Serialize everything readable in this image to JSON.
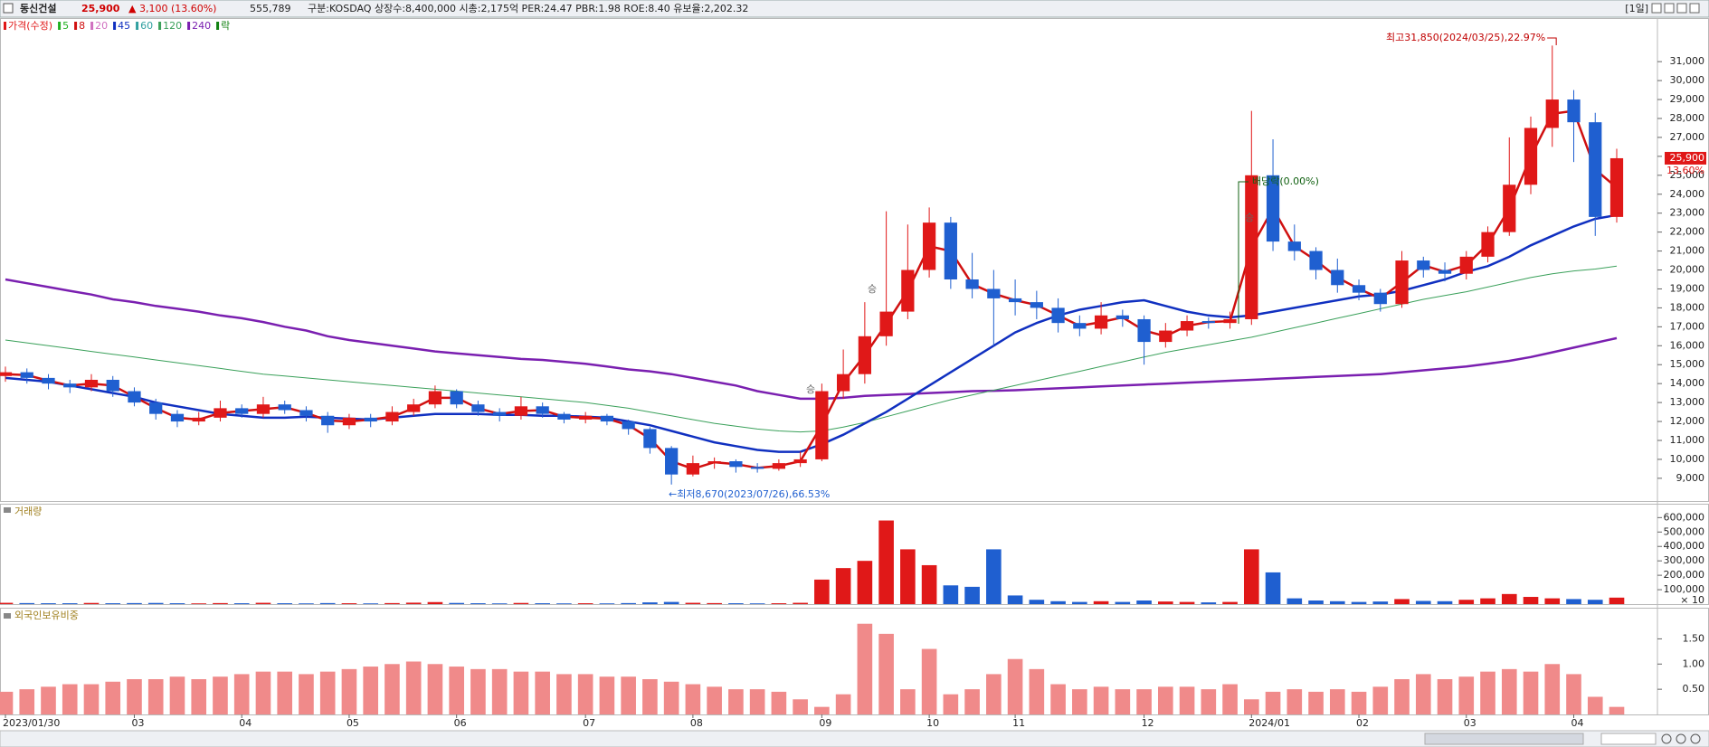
{
  "header": {
    "name": "동신건설",
    "price": "25,900",
    "change": "▲ 3,100 (13.60%)",
    "volume": "555,789",
    "info": "구분:KOSDAQ 상장수:8,400,000 시총:2,175억 PER:24.47 PBR:1.98 ROE:8.40 유보율:2,202.32",
    "period": "[1일]"
  },
  "chart_data": [
    {
      "type": "candlestick",
      "categories": [
        "2023/01/30",
        null,
        null,
        null,
        null,
        null,
        "03",
        null,
        null,
        null,
        null,
        "04",
        null,
        null,
        null,
        null,
        "05",
        null,
        null,
        null,
        null,
        "06",
        null,
        null,
        null,
        null,
        null,
        "07",
        null,
        null,
        null,
        null,
        "08",
        null,
        null,
        null,
        null,
        null,
        "09",
        null,
        null,
        null,
        null,
        "10",
        null,
        null,
        null,
        "11",
        null,
        null,
        null,
        null,
        null,
        "12",
        null,
        null,
        null,
        null,
        "2024/01",
        null,
        null,
        null,
        null,
        "02",
        null,
        null,
        null,
        null,
        "03",
        null,
        null,
        null,
        null,
        "04",
        null,
        null
      ],
      "open": [
        14400,
        14600,
        14300,
        14000,
        13800,
        14200,
        13600,
        13000,
        12400,
        12000,
        12200,
        12700,
        12400,
        12900,
        12600,
        12300,
        11800,
        12200,
        12000,
        12500,
        12900,
        13600,
        12900,
        12500,
        12300,
        12800,
        12400,
        12100,
        12300,
        12000,
        11600,
        10600,
        9200,
        9800,
        9900,
        9600,
        9500,
        9800,
        10000,
        13600,
        14500,
        16500,
        17800,
        20000,
        22500,
        19500,
        19000,
        18500,
        18300,
        18000,
        17200,
        16900,
        17600,
        17400,
        16200,
        16800,
        17300,
        17200,
        17400,
        25000,
        21500,
        21000,
        20000,
        19200,
        18800,
        18200,
        20500,
        20000,
        19800,
        20700,
        22000,
        24500,
        27500,
        29000,
        27800,
        22800
      ],
      "high": [
        14900,
        14800,
        14500,
        14200,
        14500,
        14400,
        13800,
        13200,
        12600,
        12500,
        13100,
        12900,
        13300,
        13100,
        12800,
        12500,
        12400,
        12400,
        12800,
        13200,
        13900,
        13700,
        13100,
        12700,
        13300,
        13000,
        12500,
        12500,
        12400,
        12100,
        11700,
        10700,
        10200,
        10100,
        10000,
        9800,
        10000,
        10400,
        14000,
        15800,
        18300,
        23100,
        22400,
        23300,
        22800,
        20900,
        20000,
        19500,
        18900,
        18500,
        17600,
        18300,
        17900,
        17600,
        17200,
        17600,
        17500,
        17800,
        28400,
        26900,
        22400,
        21200,
        20600,
        19500,
        19000,
        21000,
        20700,
        20400,
        21000,
        22300,
        27000,
        28100,
        31850,
        29500,
        28300,
        26400
      ],
      "low": [
        14100,
        14000,
        13700,
        13500,
        13600,
        13300,
        12800,
        12100,
        11700,
        11800,
        12000,
        12200,
        12200,
        12400,
        12000,
        11400,
        11600,
        11700,
        11800,
        12300,
        12700,
        12700,
        12300,
        12000,
        12100,
        12200,
        11900,
        11900,
        11800,
        11300,
        10300,
        8670,
        9100,
        9500,
        9300,
        9300,
        9400,
        9600,
        9900,
        13200,
        14000,
        16000,
        17400,
        19600,
        19000,
        18500,
        16000,
        17600,
        17400,
        16700,
        16500,
        16600,
        17000,
        15000,
        15900,
        16500,
        16900,
        16900,
        17100,
        21000,
        20500,
        19500,
        18800,
        18400,
        17800,
        18000,
        19600,
        19400,
        19500,
        20400,
        21800,
        24000,
        26500,
        25700,
        21800,
        22500
      ],
      "close": [
        14600,
        14300,
        14000,
        13800,
        14200,
        13600,
        13000,
        12400,
        12000,
        12200,
        12700,
        12400,
        12900,
        12600,
        12300,
        11800,
        12200,
        12000,
        12500,
        12900,
        13600,
        12900,
        12500,
        12300,
        12800,
        12400,
        12100,
        12300,
        12000,
        11600,
        10600,
        9200,
        9800,
        9900,
        9600,
        9500,
        9800,
        10000,
        13600,
        14500,
        16500,
        17800,
        20000,
        22500,
        19500,
        19000,
        18500,
        18300,
        18000,
        17200,
        16900,
        17600,
        17400,
        16200,
        16800,
        17300,
        17200,
        17400,
        25000,
        21500,
        21000,
        20000,
        19200,
        18800,
        18200,
        20500,
        20000,
        19800,
        20700,
        22000,
        24500,
        27500,
        29000,
        27800,
        22800,
        25900
      ],
      "up_color": "#e01818",
      "down_color": "#1f5fd0",
      "series": [
        {
          "name": "240",
          "color": "#7a1fb0",
          "width": 2.5,
          "values": [
            19500,
            19300,
            19100,
            18900,
            18700,
            18450,
            18300,
            18100,
            17950,
            17800,
            17600,
            17450,
            17250,
            17000,
            16800,
            16500,
            16300,
            16150,
            16000,
            15850,
            15700,
            15600,
            15500,
            15400,
            15300,
            15250,
            15150,
            15050,
            14900,
            14750,
            14650,
            14500,
            14300,
            14100,
            13900,
            13600,
            13400,
            13200,
            13200,
            13250,
            13350,
            13400,
            13450,
            13500,
            13550,
            13600,
            13620,
            13650,
            13700,
            13750,
            13800,
            13850,
            13900,
            13950,
            14000,
            14050,
            14100,
            14150,
            14200,
            14250,
            14300,
            14350,
            14400,
            14450,
            14500,
            14600,
            14700,
            14800,
            14900,
            15050,
            15200,
            15400,
            15650,
            15900,
            16150,
            16400
          ]
        },
        {
          "name": "120",
          "color": "#3aa05a",
          "width": 1,
          "values": [
            16300,
            16150,
            16000,
            15850,
            15700,
            15550,
            15400,
            15250,
            15100,
            14950,
            14800,
            14650,
            14500,
            14400,
            14300,
            14200,
            14100,
            14000,
            13900,
            13800,
            13700,
            13600,
            13500,
            13400,
            13300,
            13200,
            13100,
            13000,
            12850,
            12700,
            12500,
            12300,
            12100,
            11900,
            11750,
            11600,
            11500,
            11450,
            11500,
            11700,
            11950,
            12250,
            12550,
            12850,
            13150,
            13400,
            13650,
            13900,
            14150,
            14400,
            14650,
            14900,
            15150,
            15400,
            15650,
            15850,
            16050,
            16250,
            16450,
            16700,
            16950,
            17200,
            17450,
            17700,
            17950,
            18200,
            18450,
            18650,
            18850,
            19100,
            19350,
            19600,
            19800,
            19950,
            20050,
            20200
          ]
        },
        {
          "name": "45",
          "color": "#1030c0",
          "width": 2.5,
          "values": [
            14300,
            14200,
            14100,
            13900,
            13700,
            13500,
            13300,
            13000,
            12800,
            12600,
            12400,
            12300,
            12200,
            12200,
            12250,
            12200,
            12150,
            12100,
            12200,
            12300,
            12400,
            12400,
            12400,
            12350,
            12350,
            12300,
            12300,
            12250,
            12200,
            12000,
            11800,
            11500,
            11200,
            10900,
            10700,
            10500,
            10400,
            10400,
            10800,
            11300,
            11900,
            12500,
            13200,
            13900,
            14600,
            15300,
            16000,
            16700,
            17200,
            17600,
            17900,
            18100,
            18300,
            18400,
            18100,
            17800,
            17600,
            17500,
            17600,
            17800,
            18000,
            18200,
            18400,
            18600,
            18700,
            18900,
            19200,
            19500,
            19900,
            20200,
            20700,
            21300,
            21800,
            22300,
            22700,
            22900
          ]
        },
        {
          "name": "8",
          "color": "#d01010",
          "width": 2.5,
          "values": [
            14500,
            14450,
            14150,
            13900,
            14000,
            13900,
            13300,
            12700,
            12200,
            12100,
            12450,
            12550,
            12650,
            12750,
            12450,
            12050,
            12000,
            12100,
            12250,
            12700,
            13250,
            13250,
            12700,
            12400,
            12550,
            12600,
            12250,
            12200,
            12150,
            11800,
            11100,
            9900,
            9500,
            9850,
            9750,
            9550,
            9650,
            9900,
            11800,
            14050,
            15500,
            17150,
            18900,
            21250,
            21000,
            19250,
            18750,
            18400,
            18150,
            17600,
            17050,
            17250,
            17500,
            16800,
            16500,
            17050,
            17250,
            17300,
            21200,
            23250,
            21250,
            20500,
            19600,
            19000,
            18500,
            19350,
            20250,
            19900,
            20250,
            21350,
            23250,
            26000,
            28250,
            28400,
            25300,
            24350
          ]
        }
      ],
      "legend": [
        {
          "label": "가격(수정)",
          "color": "#e01818"
        },
        {
          "label": "5",
          "color": "#20b020"
        },
        {
          "label": "8",
          "color": "#d01010"
        },
        {
          "label": "20",
          "color": "#d070c0"
        },
        {
          "label": "45",
          "color": "#1030c0"
        },
        {
          "label": "60",
          "color": "#30a0a0"
        },
        {
          "label": "120",
          "color": "#3aa05a"
        },
        {
          "label": "240",
          "color": "#7a1fb0"
        },
        {
          "label": "락",
          "color": "#108010"
        }
      ],
      "annotations": [
        "최고31,850(2024/03/25),22.97%",
        "←최저8,670(2023/07/26),66.53%",
        "배당락(0.00%)",
        "승",
        "승",
        "승"
      ],
      "price_tag": "25,900",
      "price_tag_change": "13.60%",
      "ylim": [
        7800,
        33300
      ],
      "yticks": [
        {
          "value": 9000,
          "label": "9,000"
        },
        {
          "value": 10000,
          "label": "10,000"
        },
        {
          "value": 11000,
          "label": "11,000"
        },
        {
          "value": 12000,
          "label": "12,000"
        },
        {
          "value": 13000,
          "label": "13,000"
        },
        {
          "value": 14000,
          "label": "14,000"
        },
        {
          "value": 15000,
          "label": "15,000"
        },
        {
          "value": 16000,
          "label": "16,000"
        },
        {
          "value": 17000,
          "label": "17,000"
        },
        {
          "value": 18000,
          "label": "18,000"
        },
        {
          "value": 19000,
          "label": "19,000"
        },
        {
          "value": 20000,
          "label": "20,000"
        },
        {
          "value": 21000,
          "label": "21,000"
        },
        {
          "value": 22000,
          "label": "22,000"
        },
        {
          "value": 23000,
          "label": "23,000"
        },
        {
          "value": 24000,
          "label": "24,000"
        },
        {
          "value": 25000,
          "label": "25,000"
        },
        {
          "value": 26000,
          "label": "26,000"
        },
        {
          "value": 27000,
          "label": "27,000"
        },
        {
          "value": 28000,
          "label": "28,000"
        },
        {
          "value": 29000,
          "label": "29,000"
        },
        {
          "value": 30000,
          "label": "30,000"
        },
        {
          "value": 31000,
          "label": "31,000"
        }
      ]
    },
    {
      "type": "bar",
      "title": "거래량",
      "up_color": "#e01818",
      "down_color": "#1f5fd0",
      "values": [
        9000,
        7000,
        6000,
        6000,
        8000,
        6000,
        7000,
        8000,
        6000,
        5000,
        7000,
        6000,
        9000,
        6000,
        5000,
        7000,
        6000,
        5000,
        7000,
        10000,
        14000,
        8000,
        6000,
        5000,
        8000,
        6000,
        5000,
        6000,
        5000,
        7000,
        12000,
        15000,
        9000,
        7000,
        6000,
        5000,
        6000,
        9000,
        170000,
        250000,
        300000,
        580000,
        380000,
        270000,
        130000,
        120000,
        380000,
        60000,
        30000,
        20000,
        15000,
        20000,
        15000,
        25000,
        18000,
        15000,
        12000,
        15000,
        380000,
        220000,
        40000,
        25000,
        20000,
        15000,
        18000,
        35000,
        22000,
        20000,
        30000,
        40000,
        70000,
        50000,
        40000,
        35000,
        30000,
        45000
      ],
      "unit_note": "× 10",
      "ylim": [
        0,
        690000
      ],
      "yticks": [
        {
          "value": 100000,
          "label": "100,000"
        },
        {
          "value": 200000,
          "label": "200,000"
        },
        {
          "value": 300000,
          "label": "300,000"
        },
        {
          "value": 400000,
          "label": "400,000"
        },
        {
          "value": 500000,
          "label": "500,000"
        },
        {
          "value": 600000,
          "label": "600,000"
        }
      ]
    },
    {
      "type": "bar",
      "title": "외국인보유비중",
      "color": "#f08a8a",
      "values": [
        0.45,
        0.5,
        0.55,
        0.6,
        0.6,
        0.65,
        0.7,
        0.7,
        0.75,
        0.7,
        0.75,
        0.8,
        0.85,
        0.85,
        0.8,
        0.85,
        0.9,
        0.95,
        1.0,
        1.05,
        1.0,
        0.95,
        0.9,
        0.9,
        0.85,
        0.85,
        0.8,
        0.8,
        0.75,
        0.75,
        0.7,
        0.65,
        0.6,
        0.55,
        0.5,
        0.5,
        0.45,
        0.3,
        0.15,
        0.4,
        1.8,
        1.6,
        0.5,
        1.3,
        0.4,
        0.5,
        0.8,
        1.1,
        0.9,
        0.6,
        0.5,
        0.55,
        0.5,
        0.5,
        0.55,
        0.55,
        0.5,
        0.6,
        0.3,
        0.45,
        0.5,
        0.45,
        0.5,
        0.45,
        0.55,
        0.7,
        0.8,
        0.7,
        0.75,
        0.85,
        0.9,
        0.85,
        1.0,
        0.8,
        0.35,
        0.15
      ],
      "ylim": [
        0,
        2.1
      ],
      "yticks": [
        {
          "value": 0.5,
          "label": "0.50"
        },
        {
          "value": 1.0,
          "label": "1.00"
        },
        {
          "value": 1.5,
          "label": "1.50"
        }
      ]
    }
  ]
}
